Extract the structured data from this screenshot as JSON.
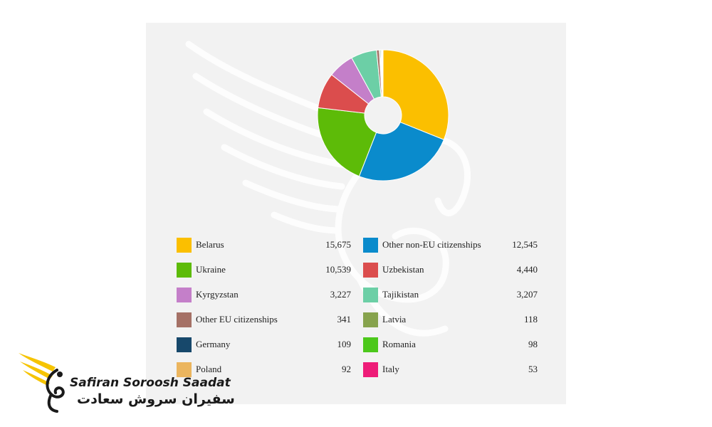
{
  "chart_data": {
    "type": "pie",
    "style": "donut",
    "title": "",
    "series": [
      {
        "name": "Belarus",
        "value": 15675,
        "color": "#fbbf00"
      },
      {
        "name": "Other non-EU citizenships",
        "value": 12545,
        "color": "#0a8bcc"
      },
      {
        "name": "Ukraine",
        "value": 10539,
        "color": "#5dbb08"
      },
      {
        "name": "Uzbekistan",
        "value": 4440,
        "color": "#db4d4d"
      },
      {
        "name": "Kyrgyzstan",
        "value": 3227,
        "color": "#c47fc9"
      },
      {
        "name": "Tajikistan",
        "value": 3207,
        "color": "#6ccfa6"
      },
      {
        "name": "Other EU citizenships",
        "value": 341,
        "color": "#a57166"
      },
      {
        "name": "Latvia",
        "value": 118,
        "color": "#87a34d"
      },
      {
        "name": "Germany",
        "value": 109,
        "color": "#17486b"
      },
      {
        "name": "Romania",
        "value": 98,
        "color": "#4cc81b"
      },
      {
        "name": "Poland",
        "value": 92,
        "color": "#ebb55e"
      },
      {
        "name": "Italy",
        "value": 53,
        "color": "#ee1c78"
      }
    ],
    "legend_rows": [
      [
        {
          "label": "Belarus",
          "value": "15,675"
        },
        {
          "label": "Other non-EU citizenships",
          "value": "12,545"
        }
      ],
      [
        {
          "label": "Ukraine",
          "value": "10,539"
        },
        {
          "label": "Uzbekistan",
          "value": "4,440"
        }
      ],
      [
        {
          "label": "Kyrgyzstan",
          "value": "3,227"
        },
        {
          "label": "Tajikistan",
          "value": "3,207"
        }
      ],
      [
        {
          "label": "Other EU citizenships",
          "value": "341"
        },
        {
          "label": "Latvia",
          "value": "118"
        }
      ],
      [
        {
          "label": "Germany",
          "value": "109"
        },
        {
          "label": "Romania",
          "value": "98"
        }
      ],
      [
        {
          "label": "Poland",
          "value": "92"
        },
        {
          "label": "Italy",
          "value": "53"
        }
      ]
    ],
    "legend_placement": "bottom"
  },
  "brand": {
    "latin": "Safiran Soroosh Saadat",
    "persian": "سفیران سروش سعادت",
    "accent_color": "#f6c400"
  }
}
